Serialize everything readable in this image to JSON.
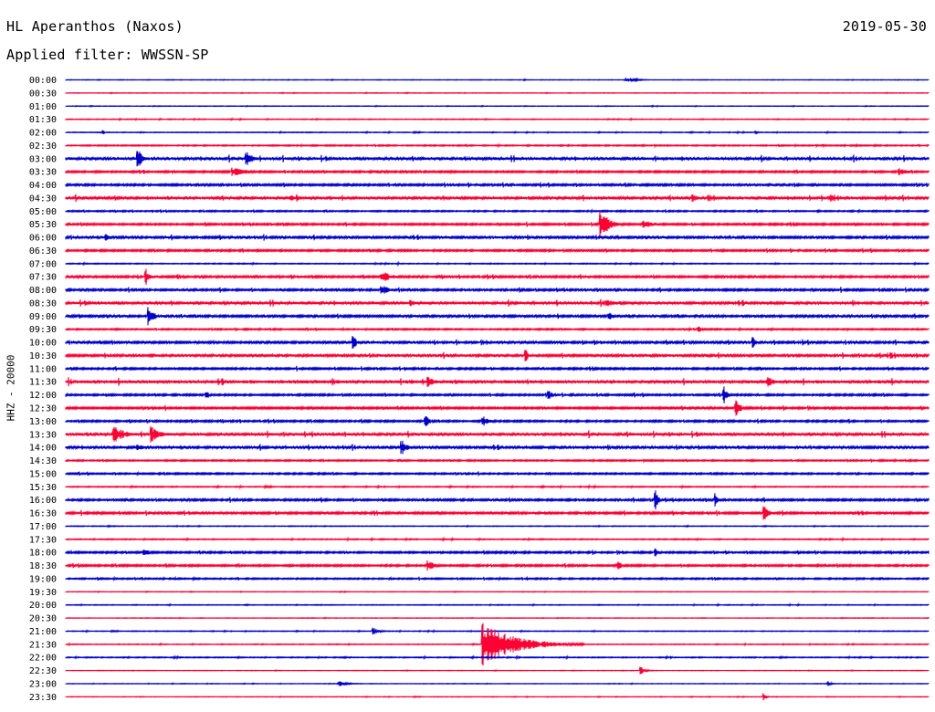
{
  "header": {
    "station": "HL Aperanthos (Naxos)",
    "date": "2019-05-30",
    "filter": "Applied filter: WWSSN-SP"
  },
  "axis": {
    "ylabel": "HHZ - 20000"
  },
  "colors": {
    "even_trace": "#0000cc",
    "odd_trace": "#ff0033",
    "background": "#ffffff"
  },
  "chart_data": {
    "type": "helicorder",
    "ylabel": "HHZ - 20000",
    "tick_labels": [
      "00:00",
      "00:30",
      "01:00",
      "01:30",
      "02:00",
      "02:30",
      "03:00",
      "03:30",
      "04:00",
      "04:30",
      "05:00",
      "05:30",
      "06:00",
      "06:30",
      "07:00",
      "07:30",
      "08:00",
      "08:30",
      "09:00",
      "09:30",
      "10:00",
      "10:30",
      "11:00",
      "11:30",
      "12:00",
      "12:30",
      "13:00",
      "13:30",
      "14:00",
      "14:30",
      "15:00",
      "15:30",
      "16:00",
      "16:30",
      "17:00",
      "17:30",
      "18:00",
      "18:30",
      "19:00",
      "19:30",
      "20:00",
      "20:30",
      "21:00",
      "21:30",
      "22:00",
      "22:30",
      "23:00",
      "23:30"
    ],
    "trace_colors": [
      "blue",
      "red"
    ],
    "noise_levels": [
      0.2,
      0.2,
      0.2,
      0.3,
      0.3,
      0.5,
      1.2,
      0.8,
      0.9,
      1.2,
      0.6,
      0.8,
      1.0,
      0.8,
      0.4,
      0.9,
      0.9,
      1.2,
      1.0,
      0.6,
      1.0,
      1.1,
      0.8,
      1.4,
      0.8,
      0.9,
      0.8,
      1.2,
      1.1,
      0.6,
      0.7,
      0.4,
      0.9,
      0.9,
      0.3,
      0.4,
      0.8,
      0.8,
      0.6,
      0.2,
      0.3,
      0.2,
      0.3,
      0.3,
      0.4,
      0.2,
      0.2,
      0.2
    ],
    "events": [
      {
        "line": "00:00",
        "minute": 19.5,
        "amplitude": 3,
        "duration_min": 1.0
      },
      {
        "line": "02:00",
        "minute": 1.3,
        "amplitude": 3,
        "duration_min": 0.2
      },
      {
        "line": "02:00",
        "minute": 24.0,
        "amplitude": 2,
        "duration_min": 0.2
      },
      {
        "line": "03:00",
        "minute": 2.5,
        "amplitude": 12,
        "duration_min": 0.5
      },
      {
        "line": "03:00",
        "minute": 6.3,
        "amplitude": 8,
        "duration_min": 0.7
      },
      {
        "line": "03:30",
        "minute": 5.8,
        "amplitude": 5,
        "duration_min": 1.4
      },
      {
        "line": "03:30",
        "minute": 10.8,
        "amplitude": 3,
        "duration_min": 1.0
      },
      {
        "line": "03:30",
        "minute": 29.0,
        "amplitude": 4,
        "duration_min": 0.9
      },
      {
        "line": "04:30",
        "minute": 7.8,
        "amplitude": 4,
        "duration_min": 0.6
      },
      {
        "line": "04:30",
        "minute": 21.8,
        "amplitude": 5,
        "duration_min": 0.5
      },
      {
        "line": "04:30",
        "minute": 26.6,
        "amplitude": 5,
        "duration_min": 0.5
      },
      {
        "line": "05:30",
        "minute": 18.6,
        "amplitude": 16,
        "duration_min": 1.0
      },
      {
        "line": "05:30",
        "minute": 20.1,
        "amplitude": 5,
        "duration_min": 1.0
      },
      {
        "line": "06:00",
        "minute": 1.4,
        "amplitude": 7,
        "duration_min": 0.3
      },
      {
        "line": "07:30",
        "minute": 2.8,
        "amplitude": 9,
        "duration_min": 0.4
      },
      {
        "line": "07:30",
        "minute": 11.0,
        "amplitude": 7,
        "duration_min": 1.0
      },
      {
        "line": "08:00",
        "minute": 11.0,
        "amplitude": 6,
        "duration_min": 0.8
      },
      {
        "line": "08:30",
        "minute": 12.0,
        "amplitude": 4,
        "duration_min": 0.8
      },
      {
        "line": "08:30",
        "minute": 18.8,
        "amplitude": 5,
        "duration_min": 0.8
      },
      {
        "line": "09:00",
        "minute": 2.9,
        "amplitude": 10,
        "duration_min": 0.6
      },
      {
        "line": "09:00",
        "minute": 18.9,
        "amplitude": 6,
        "duration_min": 0.4
      },
      {
        "line": "09:30",
        "minute": 22.0,
        "amplitude": 4,
        "duration_min": 0.4
      },
      {
        "line": "10:00",
        "minute": 10.0,
        "amplitude": 8,
        "duration_min": 0.4
      },
      {
        "line": "10:00",
        "minute": 23.9,
        "amplitude": 10,
        "duration_min": 0.2
      },
      {
        "line": "10:30",
        "minute": 16.0,
        "amplitude": 7,
        "duration_min": 0.3
      },
      {
        "line": "10:30",
        "minute": 28.7,
        "amplitude": 6,
        "duration_min": 0.2
      },
      {
        "line": "11:30",
        "minute": 12.6,
        "amplitude": 8,
        "duration_min": 0.5
      },
      {
        "line": "11:30",
        "minute": 24.4,
        "amplitude": 6,
        "duration_min": 0.8
      },
      {
        "line": "12:00",
        "minute": 4.9,
        "amplitude": 5,
        "duration_min": 0.4
      },
      {
        "line": "12:00",
        "minute": 16.8,
        "amplitude": 5,
        "duration_min": 0.5
      },
      {
        "line": "12:00",
        "minute": 22.9,
        "amplitude": 10,
        "duration_min": 0.3
      },
      {
        "line": "12:30",
        "minute": 23.3,
        "amplitude": 10,
        "duration_min": 0.5
      },
      {
        "line": "13:00",
        "minute": 12.5,
        "amplitude": 10,
        "duration_min": 0.4
      },
      {
        "line": "13:00",
        "minute": 14.5,
        "amplitude": 7,
        "duration_min": 0.6
      },
      {
        "line": "13:30",
        "minute": 1.7,
        "amplitude": 9,
        "duration_min": 1.2
      },
      {
        "line": "13:30",
        "minute": 3.0,
        "amplitude": 10,
        "duration_min": 0.8
      },
      {
        "line": "14:00",
        "minute": 2.5,
        "amplitude": 5,
        "duration_min": 0.6
      },
      {
        "line": "14:00",
        "minute": 11.7,
        "amplitude": 8,
        "duration_min": 0.5
      },
      {
        "line": "16:00",
        "minute": 20.5,
        "amplitude": 12,
        "duration_min": 0.3
      },
      {
        "line": "16:00",
        "minute": 22.6,
        "amplitude": 8,
        "duration_min": 0.3
      },
      {
        "line": "16:30",
        "minute": 24.3,
        "amplitude": 8,
        "duration_min": 0.5
      },
      {
        "line": "18:00",
        "minute": 2.7,
        "amplitude": 4,
        "duration_min": 0.8
      },
      {
        "line": "18:00",
        "minute": 20.5,
        "amplitude": 5,
        "duration_min": 0.3
      },
      {
        "line": "18:30",
        "minute": 12.6,
        "amplitude": 6,
        "duration_min": 0.8
      },
      {
        "line": "18:30",
        "minute": 19.2,
        "amplitude": 5,
        "duration_min": 0.5
      },
      {
        "line": "21:00",
        "minute": 10.7,
        "amplitude": 4,
        "duration_min": 0.6
      },
      {
        "line": "21:30",
        "minute": 14.5,
        "amplitude": 24,
        "duration_min": 3.5
      },
      {
        "line": "22:30",
        "minute": 20.0,
        "amplitude": 4,
        "duration_min": 0.5
      },
      {
        "line": "23:00",
        "minute": 9.5,
        "amplitude": 3,
        "duration_min": 0.8
      },
      {
        "line": "23:00",
        "minute": 26.5,
        "amplitude": 3,
        "duration_min": 0.3
      },
      {
        "line": "23:30",
        "minute": 24.3,
        "amplitude": 4,
        "duration_min": 0.2
      }
    ]
  }
}
